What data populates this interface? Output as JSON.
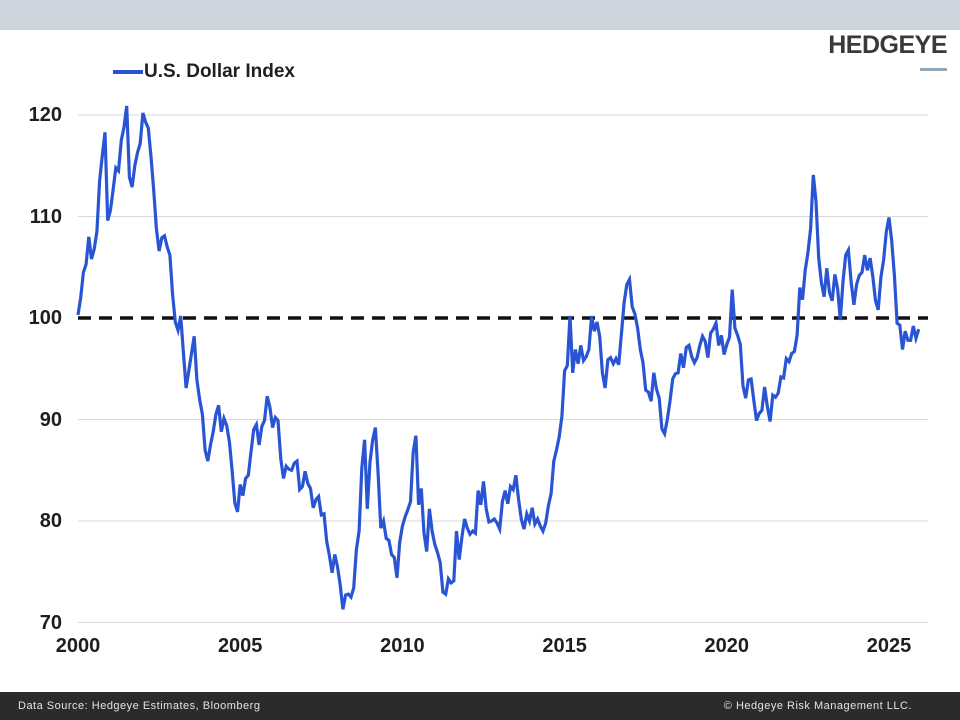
{
  "header": {
    "logo_text": "HEDGEYE"
  },
  "legend": {
    "label": "U.S. Dollar Index"
  },
  "footer": {
    "left": "Data Source: Hedgeye Estimates, Bloomberg",
    "right": "© Hedgeye Risk Management LLC."
  },
  "colors": {
    "top_bar": "#ccd5dd",
    "line": "#2955d4",
    "grid": "#d9d9d9",
    "reference_line": "#111111",
    "footer_bg": "#2b2b2b",
    "logo_dash": "#93a7b8"
  },
  "chart_data": {
    "type": "line",
    "title": "U.S. Dollar Index",
    "xlabel": "",
    "ylabel": "",
    "grid": "horizontal",
    "legend_position": "top-left",
    "x_ticks": [
      2000,
      2005,
      2010,
      2015,
      2020,
      2025
    ],
    "y_ticks": [
      70,
      80,
      90,
      100,
      110,
      120
    ],
    "xlim": [
      2000,
      2026.2
    ],
    "ylim": [
      70,
      123
    ],
    "reference_line": 100,
    "series": [
      {
        "name": "U.S. Dollar Index",
        "start_year": 2000,
        "interval": "monthly",
        "values": [
          100.3,
          102.0,
          104.5,
          105.3,
          108.0,
          105.8,
          106.8,
          108.5,
          113.5,
          116.0,
          118.3,
          109.6,
          110.6,
          112.6,
          114.8,
          114.5,
          117.5,
          118.8,
          120.9,
          113.9,
          112.9,
          115.0,
          116.3,
          117.2,
          120.2,
          119.3,
          118.7,
          115.9,
          112.6,
          108.8,
          106.6,
          107.9,
          108.1,
          107.0,
          106.2,
          102.3,
          99.6,
          98.8,
          100.2,
          96.6,
          93.1,
          94.8,
          96.5,
          98.2,
          93.9,
          92.0,
          90.5,
          87.0,
          85.9,
          87.5,
          88.8,
          90.5,
          91.4,
          88.8,
          90.1,
          89.4,
          87.8,
          85.0,
          81.8,
          80.9,
          83.6,
          82.5,
          84.2,
          84.5,
          86.8,
          89.0,
          89.5,
          87.5,
          89.3,
          89.9,
          92.3,
          91.2,
          89.2,
          90.2,
          89.9,
          86.1,
          84.2,
          85.4,
          85.1,
          85.0,
          85.7,
          85.9,
          83.1,
          83.4,
          84.9,
          83.7,
          83.2,
          81.3,
          82.1,
          82.4,
          80.6,
          80.7,
          78.0,
          76.6,
          74.9,
          76.7,
          75.5,
          73.7,
          71.3,
          72.7,
          72.8,
          72.5,
          73.4,
          77.2,
          79.0,
          85.2,
          88.0,
          81.2,
          85.8,
          88.0,
          89.2,
          84.7,
          79.3,
          80.0,
          78.3,
          78.1,
          76.7,
          76.4,
          74.4,
          77.9,
          79.5,
          80.4,
          81.1,
          81.9,
          86.8,
          88.4,
          81.6,
          83.2,
          78.8,
          77.0,
          81.2,
          79.0,
          77.7,
          76.9,
          75.9,
          73.0,
          72.8,
          74.3,
          73.9,
          74.1,
          79.0,
          76.2,
          78.4,
          80.2,
          79.3,
          78.7,
          79.0,
          78.8,
          83.0,
          81.6,
          83.9,
          81.2,
          79.9,
          80.0,
          80.2,
          79.8,
          79.2,
          81.9,
          83.0,
          81.7,
          83.4,
          83.1,
          84.5,
          82.1,
          80.2,
          79.2,
          80.7,
          80.0,
          81.3,
          79.7,
          80.2,
          79.5,
          79.0,
          79.8,
          81.5,
          82.7,
          85.9,
          87.0,
          88.3,
          90.3,
          94.8,
          95.3,
          100.2,
          94.6,
          96.9,
          95.5,
          97.3,
          95.8,
          96.2,
          96.9,
          100.2,
          98.7,
          99.6,
          98.2,
          94.6,
          93.1,
          95.9,
          96.1,
          95.5,
          96.0,
          95.4,
          98.4,
          101.5,
          103.3,
          103.8,
          101.1,
          100.4,
          99.0,
          96.9,
          95.6,
          92.9,
          92.7,
          91.8,
          94.6,
          93.0,
          92.1,
          89.1,
          88.6,
          90.0,
          91.8,
          94.0,
          94.5,
          94.6,
          96.5,
          95.1,
          97.1,
          97.3,
          96.2,
          95.6,
          96.1,
          97.3,
          98.2,
          97.7,
          96.1,
          98.5,
          98.9,
          99.5,
          97.3,
          98.3,
          96.4,
          97.4,
          98.1,
          102.8,
          99.0,
          98.3,
          97.4,
          93.3,
          92.1,
          93.9,
          94.0,
          91.9,
          89.9,
          90.6,
          90.9,
          93.2,
          91.3,
          89.8,
          92.4,
          92.2,
          92.6,
          94.2,
          94.1,
          96.0,
          95.7,
          96.5,
          96.7,
          98.3,
          103.0,
          101.8,
          104.7,
          106.4,
          108.8,
          114.1,
          111.5,
          105.9,
          103.5,
          102.1,
          104.9,
          102.5,
          101.7,
          104.3,
          102.9,
          99.8,
          103.6,
          106.2,
          106.7,
          103.5,
          101.3,
          103.3,
          104.2,
          104.5,
          106.2,
          104.7,
          105.9,
          104.1,
          101.7,
          100.8,
          104.0,
          105.7,
          108.5,
          109.9,
          107.6,
          104.2,
          99.5,
          99.3,
          96.9,
          98.7,
          97.8,
          97.8,
          99.2,
          98.0,
          98.9
        ]
      }
    ]
  }
}
